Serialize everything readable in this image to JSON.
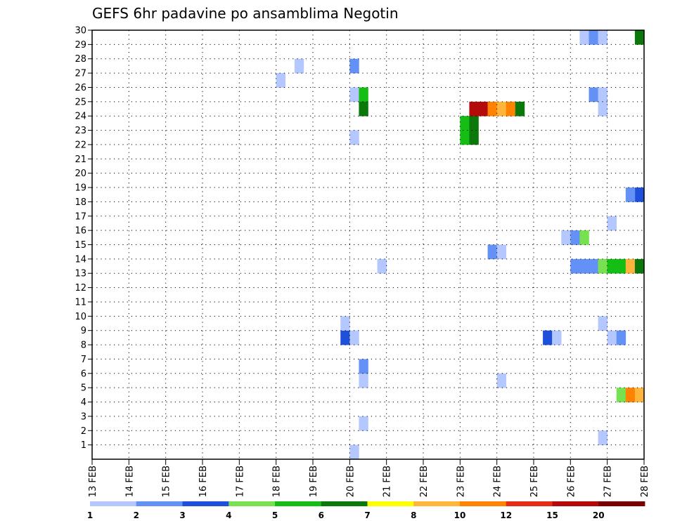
{
  "chart_data": {
    "type": "heatmap",
    "title": "GEFS 6hr padavine po ansamblima Negotin",
    "xlabel": "",
    "ylabel": "",
    "x_tick_labels": [
      "13 FEB",
      "14 FEB",
      "15 FEB",
      "16 FEB",
      "17 FEB",
      "18 FEB",
      "19 FEB",
      "20 FEB",
      "21 FEB",
      "22 FEB",
      "23 FEB",
      "24 FEB",
      "25 FEB",
      "26 FEB",
      "27 FEB",
      "28 FEB"
    ],
    "y_tick_labels": [
      "1",
      "2",
      "3",
      "4",
      "5",
      "6",
      "7",
      "8",
      "9",
      "10",
      "11",
      "12",
      "13",
      "14",
      "15",
      "16",
      "17",
      "18",
      "19",
      "20",
      "21",
      "22",
      "23",
      "24",
      "25",
      "26",
      "27",
      "28",
      "29",
      "30"
    ],
    "x_unit": "6-hour step after 13 FEB 00Z",
    "xlim": [
      0,
      60
    ],
    "ylim": [
      0,
      30
    ],
    "grid": true,
    "legend": "bottom colorbar",
    "colorbar": {
      "labels": [
        "1",
        "2",
        "3",
        "4",
        "5",
        "6",
        "7",
        "8",
        "10",
        "12",
        "15",
        "20"
      ],
      "colors": [
        "#b4c8ff",
        "#6491f5",
        "#1e50dc",
        "#78e150",
        "#14be14",
        "#0a780a",
        "#ffff00",
        "#ffb43c",
        "#ff8200",
        "#e62d14",
        "#b40a0a",
        "#780000"
      ]
    },
    "cells": [
      {
        "t": 28,
        "y": 0,
        "c": 0
      },
      {
        "t": 27,
        "y": 8,
        "c": 2
      },
      {
        "t": 28,
        "y": 8,
        "c": 0
      },
      {
        "t": 27,
        "y": 9,
        "c": 0
      },
      {
        "t": 31,
        "y": 13,
        "c": 0
      },
      {
        "t": 29,
        "y": 2,
        "c": 0
      },
      {
        "t": 29,
        "y": 5,
        "c": 0
      },
      {
        "t": 29,
        "y": 6,
        "c": 1
      },
      {
        "t": 28,
        "y": 22,
        "c": 0
      },
      {
        "t": 28,
        "y": 25,
        "c": 0
      },
      {
        "t": 29,
        "y": 25,
        "c": 4
      },
      {
        "t": 29,
        "y": 24,
        "c": 5
      },
      {
        "t": 28,
        "y": 27,
        "c": 1
      },
      {
        "t": 20,
        "y": 26,
        "c": 0
      },
      {
        "t": 22,
        "y": 27,
        "c": 0
      },
      {
        "t": 40,
        "y": 23,
        "c": 4
      },
      {
        "t": 40,
        "y": 22,
        "c": 4
      },
      {
        "t": 41,
        "y": 23,
        "c": 5
      },
      {
        "t": 41,
        "y": 22,
        "c": 5
      },
      {
        "t": 41,
        "y": 24,
        "c": 10
      },
      {
        "t": 42,
        "y": 24,
        "c": 10
      },
      {
        "t": 43,
        "y": 24,
        "c": 8
      },
      {
        "t": 44,
        "y": 24,
        "c": 7
      },
      {
        "t": 45,
        "y": 24,
        "c": 8
      },
      {
        "t": 46,
        "y": 24,
        "c": 5
      },
      {
        "t": 43,
        "y": 14,
        "c": 1
      },
      {
        "t": 44,
        "y": 14,
        "c": 0
      },
      {
        "t": 44,
        "y": 5,
        "c": 0
      },
      {
        "t": 49,
        "y": 8,
        "c": 2
      },
      {
        "t": 50,
        "y": 8,
        "c": 0
      },
      {
        "t": 51,
        "y": 15,
        "c": 0
      },
      {
        "t": 52,
        "y": 15,
        "c": 1
      },
      {
        "t": 53,
        "y": 15,
        "c": 3
      },
      {
        "t": 52,
        "y": 13,
        "c": 1
      },
      {
        "t": 53,
        "y": 13,
        "c": 1
      },
      {
        "t": 54,
        "y": 13,
        "c": 1
      },
      {
        "t": 55,
        "y": 13,
        "c": 3
      },
      {
        "t": 56,
        "y": 13,
        "c": 4
      },
      {
        "t": 57,
        "y": 13,
        "c": 4
      },
      {
        "t": 58,
        "y": 13,
        "c": 7
      },
      {
        "t": 59,
        "y": 13,
        "c": 5
      },
      {
        "t": 53,
        "y": 29,
        "c": 0
      },
      {
        "t": 54,
        "y": 29,
        "c": 1
      },
      {
        "t": 55,
        "y": 29,
        "c": 0
      },
      {
        "t": 59,
        "y": 29,
        "c": 5
      },
      {
        "t": 54,
        "y": 25,
        "c": 1
      },
      {
        "t": 55,
        "y": 25,
        "c": 0
      },
      {
        "t": 55,
        "y": 24,
        "c": 0
      },
      {
        "t": 55,
        "y": 9,
        "c": 0
      },
      {
        "t": 55,
        "y": 1,
        "c": 0
      },
      {
        "t": 56,
        "y": 16,
        "c": 0
      },
      {
        "t": 56,
        "y": 8,
        "c": 0
      },
      {
        "t": 57,
        "y": 8,
        "c": 1
      },
      {
        "t": 57,
        "y": 4,
        "c": 3
      },
      {
        "t": 58,
        "y": 4,
        "c": 8
      },
      {
        "t": 59,
        "y": 4,
        "c": 7
      },
      {
        "t": 59,
        "y": 18,
        "c": 2
      },
      {
        "t": 58,
        "y": 18,
        "c": 1
      }
    ]
  }
}
